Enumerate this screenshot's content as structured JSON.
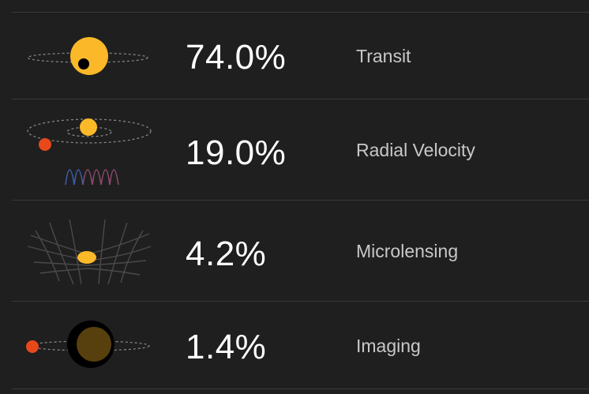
{
  "methods": [
    {
      "id": "transit",
      "percent": "74.0%",
      "label": "Transit",
      "icon": "transit-icon"
    },
    {
      "id": "radial-velocity",
      "percent": "19.0%",
      "label": "Radial Velocity",
      "icon": "radial-velocity-icon"
    },
    {
      "id": "microlensing",
      "percent": "4.2%",
      "label": "Microlensing",
      "icon": "microlensing-icon"
    },
    {
      "id": "imaging",
      "percent": "1.4%",
      "label": "Imaging",
      "icon": "imaging-icon"
    }
  ],
  "colors": {
    "background": "#1f1f1f",
    "divider": "#3a3a3a",
    "star": "#fbb829",
    "planet_red": "#e8491b",
    "percent_text": "#ffffff",
    "label_text": "#c8c8c8"
  }
}
